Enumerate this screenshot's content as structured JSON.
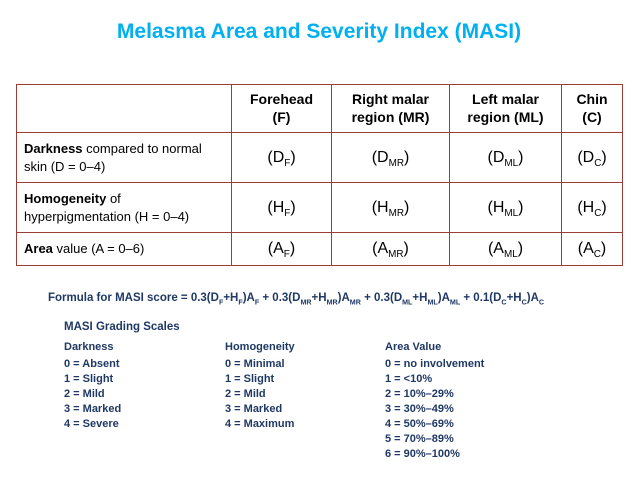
{
  "title": "Melasma Area and Severity Index (MASI)",
  "table": {
    "headers": [
      {
        "line1": "Forehead",
        "line2": "(F)"
      },
      {
        "line1": "Right malar",
        "line2": "region (MR)"
      },
      {
        "line1": "Left malar",
        "line2": "region (ML)"
      },
      {
        "line1": "Chin",
        "line2": "(C)"
      }
    ],
    "rows": [
      {
        "label_bold": "Darkness",
        "label_rest": " compared to normal skin (D = 0–4)",
        "cells": [
          {
            "pre": "(D",
            "sub": "F",
            "post": ")"
          },
          {
            "pre": "(D",
            "sub": "MR",
            "post": ")"
          },
          {
            "pre": "(D",
            "sub": "ML",
            "post": ")"
          },
          {
            "pre": "(D",
            "sub": "C",
            "post": ")"
          }
        ]
      },
      {
        "label_bold": "Homogeneity",
        "label_rest": " of hyperpigmentation (H = 0–4)",
        "cells": [
          {
            "pre": "(H",
            "sub": "F",
            "post": ")"
          },
          {
            "pre": "(H",
            "sub": "MR",
            "post": ")"
          },
          {
            "pre": "(H",
            "sub": "ML",
            "post": ")"
          },
          {
            "pre": "(H",
            "sub": "C",
            "post": ")"
          }
        ]
      },
      {
        "label_bold": "Area",
        "label_rest": " value (A = 0–6)",
        "cells": [
          {
            "pre": "(A",
            "sub": "F",
            "post": ")"
          },
          {
            "pre": "(A",
            "sub": "MR",
            "post": ")"
          },
          {
            "pre": "(A",
            "sub": "ML",
            "post": ")"
          },
          {
            "pre": "(A",
            "sub": "C",
            "post": ")"
          }
        ]
      }
    ]
  },
  "formula": {
    "parts": [
      {
        "text": "Formula for MASI score = 0.3(D"
      },
      {
        "sub": "F"
      },
      {
        "text": "+H"
      },
      {
        "sub": "F"
      },
      {
        "text": ")A"
      },
      {
        "sub": "F"
      },
      {
        "text": " + 0.3(D"
      },
      {
        "sub": "MR"
      },
      {
        "text": "+H"
      },
      {
        "sub": "MR"
      },
      {
        "text": ")A"
      },
      {
        "sub": "MR"
      },
      {
        "text": " + 0.3(D"
      },
      {
        "sub": "ML"
      },
      {
        "text": "+H"
      },
      {
        "sub": "ML"
      },
      {
        "text": ")A"
      },
      {
        "sub": "ML"
      },
      {
        "text": " + 0.1(D"
      },
      {
        "sub": "C"
      },
      {
        "text": "+H"
      },
      {
        "sub": "C"
      },
      {
        "text": ")A"
      },
      {
        "sub": "C"
      }
    ]
  },
  "grading": {
    "title": "MASI Grading Scales",
    "columns": [
      {
        "title": "Darkness",
        "items": [
          "0 = Absent",
          "1 = Slight",
          "2 = Mild",
          "3 = Marked",
          "4 = Severe"
        ]
      },
      {
        "title": "Homogeneity",
        "items": [
          "0 = Minimal",
          "1 = Slight",
          "2 = Mild",
          "3 = Marked",
          "4 = Maximum"
        ]
      },
      {
        "title": "Area Value",
        "items": [
          "0 = no involvement",
          "1 = <10%",
          "2 = 10%–29%",
          "3 = 30%–49%",
          "4 = 50%–69%",
          "5 = 70%–89%",
          "6 = 90%–100%"
        ]
      }
    ]
  }
}
